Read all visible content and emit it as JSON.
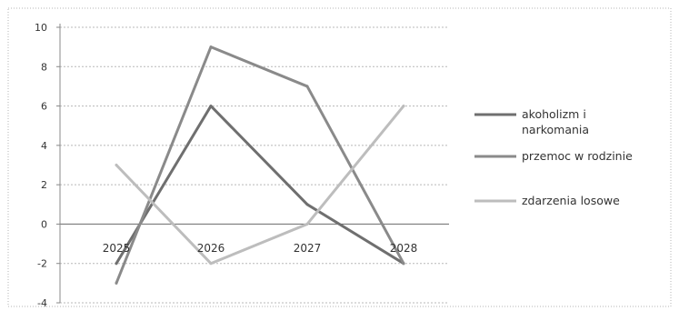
{
  "chart_data": {
    "type": "line",
    "title": "",
    "xlabel": "",
    "ylabel": "",
    "categories": [
      "2025",
      "2026",
      "2027",
      "2028"
    ],
    "ylim": [
      -4,
      10
    ],
    "yticks": [
      10,
      8,
      6,
      4,
      2,
      0,
      -2,
      -4
    ],
    "ytick_labels": [
      "10",
      "8",
      "6",
      "4",
      "2",
      "0",
      "-2",
      "-4"
    ],
    "grid": true,
    "legend_position": "right",
    "series": [
      {
        "name": "akoholizm i narkomania",
        "legend_lines": [
          "akoholizm i",
          "narkomania"
        ],
        "values": [
          -2,
          6,
          1,
          -2
        ],
        "color": "#6f6f6f"
      },
      {
        "name": "przemoc w rodzinie",
        "legend_lines": [
          "przemoc w rodzinie"
        ],
        "values": [
          -3,
          9,
          7,
          -2
        ],
        "color": "#8a8a8a"
      },
      {
        "name": "zdarzenia losowe",
        "legend_lines": [
          "zdarzenia losowe"
        ],
        "values": [
          3,
          -2,
          0,
          6
        ],
        "color": "#bdbdbd"
      }
    ]
  }
}
